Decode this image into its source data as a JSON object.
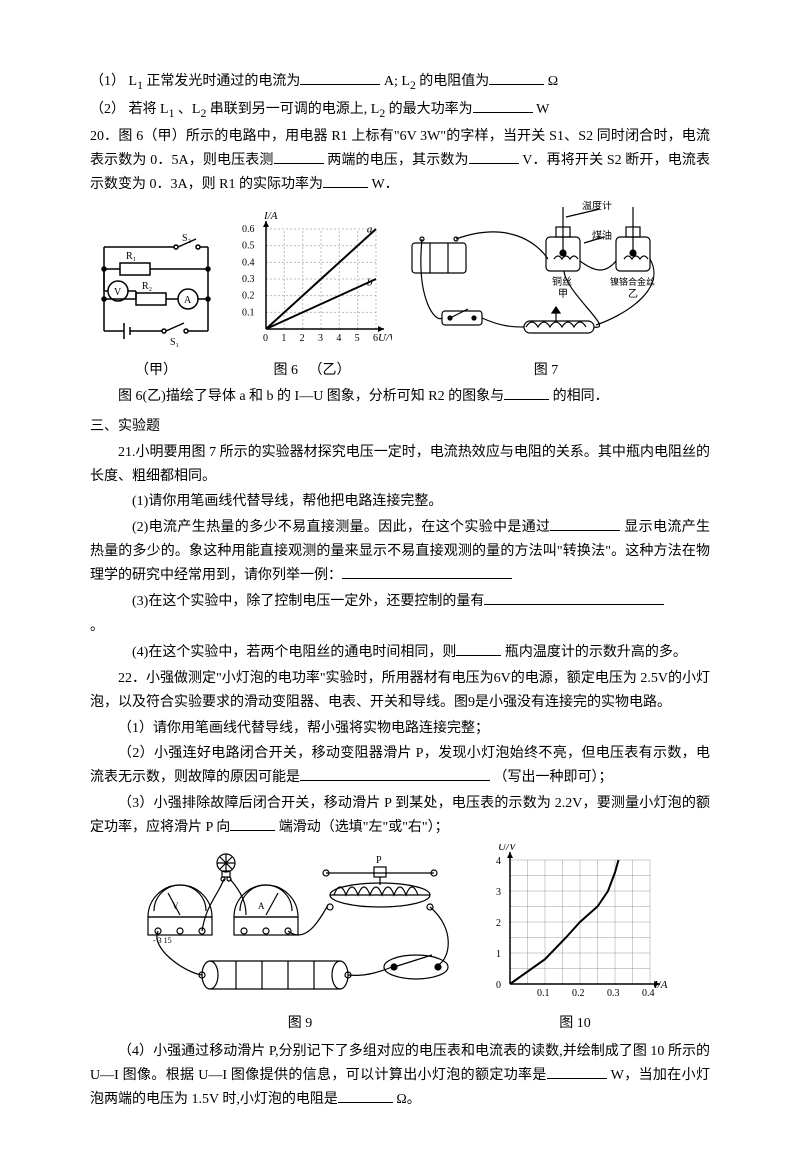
{
  "q19": {
    "line1_a": "（1） L",
    "line1_b": "正常发光时通过的电流为",
    "line1_c": "A; L",
    "line1_d": "的电阻值为",
    "line1_e": "Ω",
    "line2_a": "（2） 若将 L",
    "line2_b": "、L",
    "line2_c": " 串联到另一可调的电源上, L",
    "line2_d": "的最大功率为",
    "line2_e": "W",
    "sub1": "1",
    "sub2": "2"
  },
  "q20": {
    "t1": "20．图 6（甲）所示的电路中，用电器 R1 上标有\"6V 3W\"的字样，当开关 S1、S2 同时闭合时，电流表示数为 0．5A，则电压表测",
    "t2": "两端的电压，其示数为",
    "t3": "V．再将开关 S2 断开，电流表示数变为 0．3A，则 R1 的实际功率为",
    "t4": "W．",
    "t5": "图 6(乙)描绘了导体 a 和 b 的 I—U 图象，分析可知 R2 的图象与",
    "t6": "的相同．"
  },
  "fig6": {
    "jia_caption": "（甲）",
    "yi_caption": "（乙）",
    "caption": "图 6",
    "graph": {
      "xlabel": "U/V",
      "ylabel": "I/A",
      "xticks": [
        "0",
        "1",
        "2",
        "3",
        "4",
        "5",
        "6"
      ],
      "yticks": [
        "0.1",
        "0.2",
        "0.3",
        "0.4",
        "0.5",
        "0.6"
      ],
      "series": [
        {
          "label": "a",
          "color": "#000",
          "points": [
            [
              0,
              0
            ],
            [
              6,
              0.6
            ]
          ]
        },
        {
          "label": "b",
          "color": "#000",
          "points": [
            [
              0,
              0
            ],
            [
              6,
              0.3
            ]
          ]
        }
      ],
      "axis_color": "#000",
      "grid_color": "#bbb",
      "bg": "#fff"
    },
    "labels": {
      "R1": "R₁",
      "R2": "R₂",
      "S1": "S₁",
      "S2": "S₂",
      "V": "V",
      "A": "A"
    }
  },
  "fig7": {
    "caption": "图 7",
    "labels": {
      "thermo": "温度计",
      "kerosene": "煤油",
      "steel": "铜丝",
      "nichrome": "镍铬合金丝",
      "jia": "甲",
      "yi": "乙"
    }
  },
  "section3": {
    "title": "三、实验题"
  },
  "q21": {
    "intro": "21.小明要用图 7 所示的实验器材探究电压一定时，电流热效应与电阻的关系。其中瓶内电阻丝的长度、粗细都相同。",
    "p1": "(1)请你用笔画线代替导线，帮他把电路连接完整。",
    "p2a": "(2)电流产生热量的多少不易直接测量。因此，在这个实验中是通过",
    "p2b": "显示电流产生热量的多少的。象这种用能直接观测的量来显示不易直接观测的量的方法叫\"转换法\"。这种方法在物理学的研究中经常用到，请你列举一例：",
    "p3": "(3)在这个实验中，除了控制电压一定外，还要控制的量有",
    "period": "。",
    "p4a": "(4)在这个实验中，若两个电阻丝的通电时间相同，则",
    "p4b": "瓶内温度计的示数升高的多。"
  },
  "q22": {
    "intro": "22．小强做测定\"小灯泡的电功率\"实验时，所用器材有电压为6V的电源，额定电压为 2.5V的小灯泡，以及符合实验要求的滑动变阻器、电表、开关和导线。图9是小强没有连接完的实物电路。",
    "p1": "（1）请你用笔画线代替导线，帮小强将实物电路连接完整；",
    "p2a": "（2）小强连好电路闭合开关，移动变阻器滑片 P，发现小灯泡始终不亮，但电压表有示数，电流表无示数，则故障的原因可能是",
    "p2b": "（写出一种即可）；",
    "p3a": "（3）小强排除故障后闭合开关，移动滑片 P 到某处，电压表的示数为 2.2V，要测量小灯泡的额定功率，应将滑片 P 向",
    "p3b": "端滑动（选填\"左\"或\"右\"）；",
    "p4a": "（4）小强通过移动滑片 P,分别记下了多组对应的电压表和电流表的读数,并绘制成了图 10 所示的 U—I 图像。根据 U—I 图像提供的信息，可以计算出小灯泡的额定功率是",
    "p4b": "W，当加在小灯泡两端的电压为 1.5V 时,小灯泡的电阻是",
    "p4c": "Ω。"
  },
  "fig9": {
    "caption": "图 9",
    "P": "P"
  },
  "fig10": {
    "caption": "图 10",
    "graph": {
      "xlabel": "I/A",
      "ylabel": "U/V",
      "xticks": [
        "0.1",
        "0.2",
        "0.3",
        "0.4"
      ],
      "yticks": [
        "0",
        "1",
        "2",
        "3",
        "4"
      ],
      "curve_points": [
        [
          0,
          0
        ],
        [
          0.1,
          0.8
        ],
        [
          0.16,
          1.5
        ],
        [
          0.2,
          2.0
        ],
        [
          0.25,
          2.5
        ],
        [
          0.28,
          3.0
        ],
        [
          0.3,
          3.6
        ],
        [
          0.31,
          4.0
        ]
      ],
      "axis_color": "#000",
      "grid_color": "#999",
      "bg": "#fff",
      "line_color": "#000",
      "line_width": 2
    }
  }
}
